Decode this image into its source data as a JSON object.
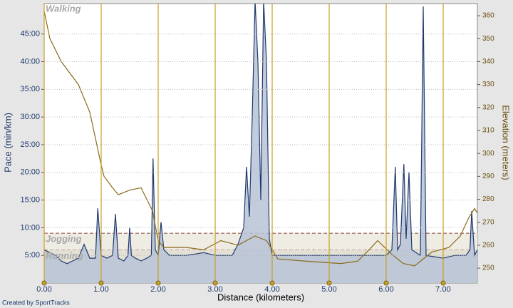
{
  "chart_data": {
    "type": "line",
    "xlabel": "Distance (kilometers)",
    "ylabel": "Pace (min/km)",
    "y2label": "Elevation (meters)",
    "footer": "Created by SportTracks",
    "xlim": [
      0,
      7.6
    ],
    "xticks": [
      {
        "value": 0,
        "label": "0.00"
      },
      {
        "value": 1,
        "label": "1.00"
      },
      {
        "value": 2,
        "label": "2.00"
      },
      {
        "value": 3,
        "label": "3.00"
      },
      {
        "value": 4,
        "label": "4.00"
      },
      {
        "value": 5,
        "label": "5.00"
      },
      {
        "value": 6,
        "label": "6.00"
      },
      {
        "value": 7,
        "label": "7.00"
      }
    ],
    "ylim": [
      0,
      50.5
    ],
    "yticks": [
      {
        "value": 5,
        "label": "5:00"
      },
      {
        "value": 10,
        "label": "10:00"
      },
      {
        "value": 15,
        "label": "15:00"
      },
      {
        "value": 20,
        "label": "20:00"
      },
      {
        "value": 25,
        "label": "25:00"
      },
      {
        "value": 30,
        "label": "30:00"
      },
      {
        "value": 35,
        "label": "35:00"
      },
      {
        "value": 40,
        "label": "40:00"
      },
      {
        "value": 45,
        "label": "45:00"
      }
    ],
    "y2lim": [
      243.5,
      365.3
    ],
    "y2ticks": [
      250,
      260,
      270,
      280,
      290,
      300,
      310,
      320,
      330,
      340,
      350,
      360
    ],
    "zones": [
      {
        "name": "Running",
        "from": 0,
        "to": 6
      },
      {
        "name": "Jogging",
        "from": 6,
        "to": 9
      },
      {
        "name": "Walking",
        "from": 9,
        "to": 50.5
      }
    ],
    "series": [
      {
        "name": "Pace",
        "color": "#1f3a6e",
        "fill": "#b9c3d6",
        "x": [
          0,
          0.1,
          0.2,
          0.3,
          0.4,
          0.5,
          0.6,
          0.7,
          0.8,
          0.9,
          0.94,
          1.0,
          1.1,
          1.2,
          1.25,
          1.3,
          1.4,
          1.47,
          1.5,
          1.53,
          1.6,
          1.7,
          1.8,
          1.88,
          1.91,
          1.95,
          2.0,
          2.05,
          2.1,
          2.2,
          2.5,
          2.8,
          3.0,
          3.3,
          3.4,
          3.5,
          3.55,
          3.6,
          3.65,
          3.7,
          3.75,
          3.8,
          3.85,
          3.9,
          3.95,
          4.0,
          4.5,
          5.0,
          5.5,
          6.0,
          6.1,
          6.16,
          6.2,
          6.25,
          6.31,
          6.35,
          6.4,
          6.45,
          6.6,
          6.65,
          6.7,
          7.0,
          7.2,
          7.4,
          7.47,
          7.5,
          7.55,
          7.6
        ],
        "values": [
          6,
          5.5,
          5,
          4,
          3.5,
          4,
          4.5,
          7,
          4.5,
          4.5,
          13.5,
          5,
          4.5,
          5,
          12.5,
          4.5,
          4,
          5,
          10,
          5,
          4.5,
          4,
          4.5,
          5,
          22.5,
          6,
          5,
          11,
          6,
          5,
          5,
          5.5,
          5,
          5,
          7,
          10,
          21,
          12,
          30,
          51,
          40,
          15,
          51,
          40,
          8,
          5,
          5,
          5,
          5,
          5,
          6,
          21,
          6,
          7,
          21.5,
          8,
          20,
          6,
          5,
          50,
          5,
          4.5,
          5,
          5,
          6,
          13,
          5,
          6
        ]
      },
      {
        "name": "Elevation",
        "color": "#8b6a1c",
        "axis": "y2",
        "x": [
          0,
          0.1,
          0.3,
          0.6,
          0.8,
          1.0,
          1.05,
          1.2,
          1.3,
          1.5,
          1.7,
          1.9,
          2.0,
          2.1,
          2.5,
          2.8,
          3.1,
          3.4,
          3.7,
          3.9,
          4.1,
          4.6,
          5.2,
          5.5,
          5.7,
          5.85,
          6.1,
          6.3,
          6.5,
          6.8,
          7.1,
          7.3,
          7.45,
          7.55,
          7.6
        ],
        "values": [
          362,
          350,
          340,
          330,
          318,
          295,
          290,
          285,
          282,
          284,
          285,
          275,
          262,
          259,
          259,
          258,
          262,
          260,
          264,
          262,
          254,
          253,
          252,
          253,
          258,
          262,
          256,
          252,
          251,
          257,
          259,
          264,
          272,
          276,
          274
        ]
      }
    ]
  }
}
